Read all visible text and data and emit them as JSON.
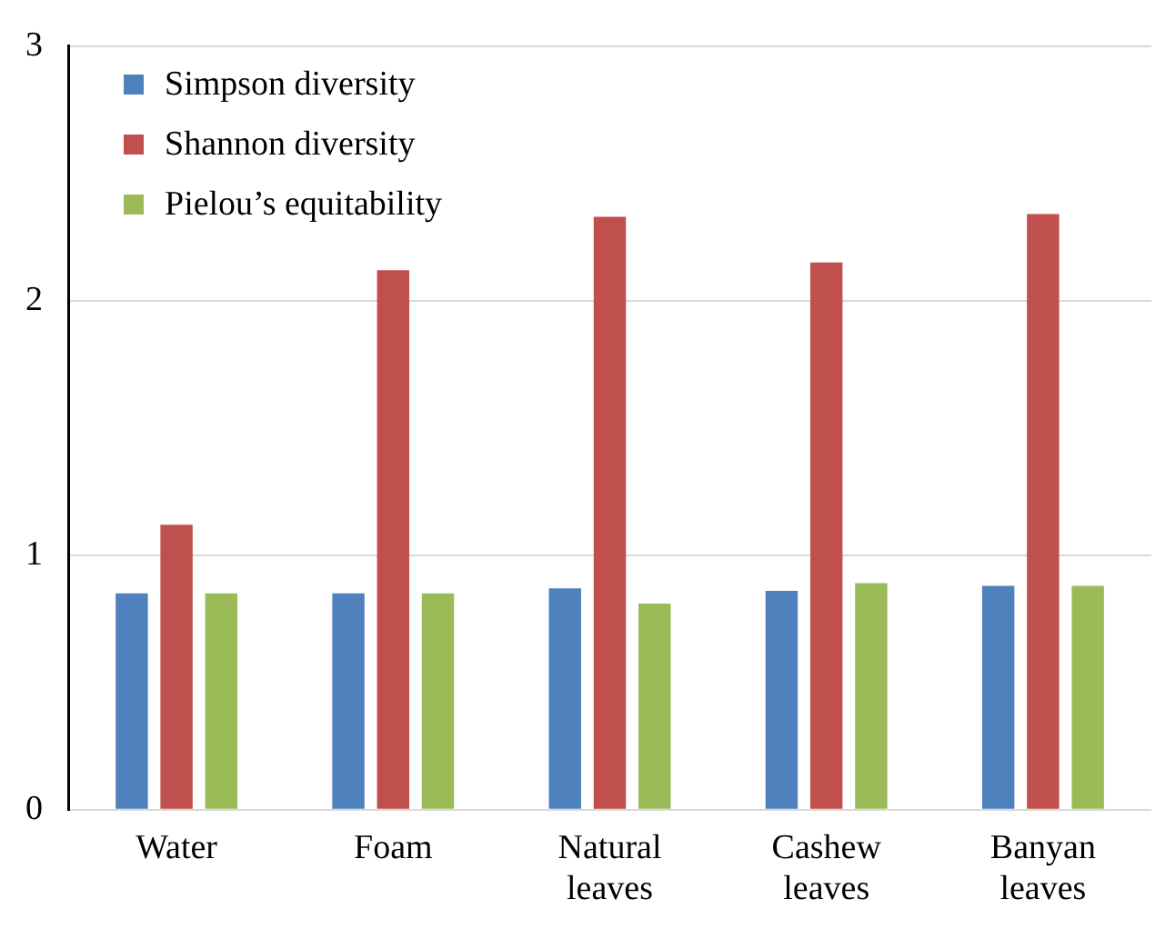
{
  "chart_data": {
    "type": "bar",
    "categories": [
      "Water",
      "Foam",
      "Natural leaves",
      "Cashew leaves",
      "Banyan leaves"
    ],
    "series": [
      {
        "name": "Simpson diversity",
        "color": "#4f81bd",
        "values": [
          0.85,
          0.85,
          0.87,
          0.86,
          0.88
        ]
      },
      {
        "name": "Shannon diversity",
        "color": "#c0504d",
        "values": [
          1.12,
          2.12,
          2.33,
          2.15,
          2.34
        ]
      },
      {
        "name": "Pielou’s equitability",
        "color": "#9bbb59",
        "values": [
          0.85,
          0.85,
          0.81,
          0.89,
          0.88
        ]
      }
    ],
    "ylim": [
      0,
      3
    ],
    "yticks": [
      0,
      1,
      2,
      3
    ],
    "grid": "y",
    "legend": "top left"
  }
}
